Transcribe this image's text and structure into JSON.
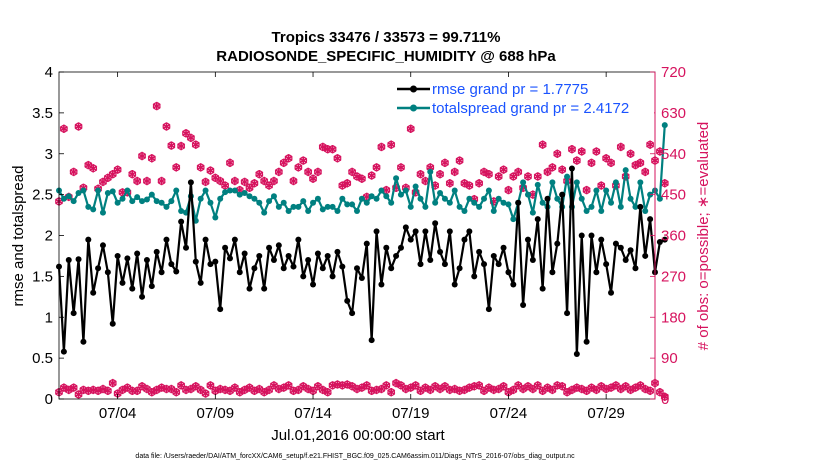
{
  "chart_data": {
    "type": "line",
    "title_line1": "Tropics 33476 / 33573 = 99.711%",
    "title_line2": "RADIOSONDE_SPECIFIC_HUMIDITY @ 688 hPa",
    "xlabel": "Jul.01,2016 00:00:00 start",
    "ylabel_left": "rmse and totalspread",
    "ylabel_right": "# of obs: o=possible; ∗=evaluated",
    "footnote": "data file: /Users/raeder/DAI/ATM_forcXX/CAM6_setup/f.e21.FHIST_BGC.f09_025.CAM6assim.011/Diags_NTrS_2016-07/obs_diag_output.nc",
    "x_range": [
      0.5,
      31.0
    ],
    "ylim_left": [
      0,
      4
    ],
    "ylim_right": [
      0,
      720
    ],
    "xticks": [
      {
        "value": 3.5,
        "label": "07/04"
      },
      {
        "value": 8.5,
        "label": "07/09"
      },
      {
        "value": 13.5,
        "label": "07/14"
      },
      {
        "value": 18.5,
        "label": "07/19"
      },
      {
        "value": 23.5,
        "label": "07/24"
      },
      {
        "value": 28.5,
        "label": "07/29"
      }
    ],
    "yticks_left": [
      "0",
      "0.5",
      "1",
      "1.5",
      "2",
      "2.5",
      "3",
      "3.5",
      "4"
    ],
    "yticks_right": [
      "0",
      "90",
      "180",
      "270",
      "360",
      "450",
      "540",
      "630",
      "720"
    ],
    "x_start": 0.5,
    "x_step": 0.25,
    "colors": {
      "rmse": "#000000",
      "spread": "#008080",
      "obs": "#d6135e",
      "legend_text": "#1a53ff",
      "axis": "#000000"
    },
    "legend": [
      {
        "name": "rmse grand pr = 1.7775",
        "series": "rmse"
      },
      {
        "name": "totalspread grand pr = 2.4172",
        "series": "spread"
      }
    ],
    "series": [
      {
        "name": "rmse",
        "values": [
          1.62,
          0.58,
          1.7,
          1.05,
          1.71,
          0.7,
          1.95,
          1.3,
          1.6,
          1.88,
          1.55,
          0.92,
          1.75,
          1.42,
          1.72,
          1.35,
          1.78,
          1.25,
          1.7,
          1.38,
          1.8,
          1.55,
          1.95,
          1.65,
          1.56,
          2.17,
          1.85,
          2.65,
          1.68,
          1.42,
          1.95,
          1.65,
          1.68,
          1.1,
          1.85,
          1.72,
          1.95,
          1.55,
          1.78,
          1.35,
          1.6,
          1.75,
          1.35,
          1.85,
          1.7,
          1.88,
          1.6,
          1.75,
          1.62,
          1.95,
          1.5,
          1.7,
          1.4,
          1.78,
          1.6,
          1.75,
          1.5,
          1.8,
          1.62,
          1.2,
          1.05,
          1.6,
          1.48,
          1.9,
          0.72,
          2.05,
          1.4,
          1.85,
          1.6,
          1.75,
          1.85,
          2.1,
          1.95,
          2.05,
          1.65,
          2.05,
          1.7,
          2.15,
          1.8,
          1.65,
          2.05,
          1.4,
          1.6,
          1.95,
          2.05,
          1.5,
          1.8,
          1.65,
          1.1,
          1.75,
          1.65,
          1.85,
          1.55,
          1.4,
          2.4,
          1.15,
          1.95,
          1.7,
          2.2,
          1.35,
          2.45,
          1.55,
          1.9,
          2.5,
          1.05,
          2.82,
          0.55,
          2.0,
          0.7,
          2.0,
          1.55,
          1.95,
          1.65,
          1.3,
          1.9,
          1.85,
          1.7,
          1.82,
          1.6,
          2.35,
          1.75,
          2.2,
          1.55,
          1.92,
          1.95
        ]
      },
      {
        "name": "totalspread",
        "values": [
          2.55,
          2.45,
          2.48,
          2.42,
          2.52,
          2.55,
          2.35,
          2.32,
          2.55,
          2.28,
          2.52,
          2.54,
          2.4,
          2.45,
          2.55,
          2.42,
          2.47,
          2.42,
          2.44,
          2.5,
          2.42,
          2.4,
          2.35,
          2.42,
          2.55,
          2.3,
          2.28,
          2.48,
          2.18,
          2.45,
          2.55,
          2.4,
          2.22,
          2.45,
          2.53,
          2.55,
          2.55,
          2.5,
          2.52,
          2.48,
          2.45,
          2.4,
          2.28,
          2.42,
          2.48,
          2.35,
          2.4,
          2.3,
          2.35,
          2.35,
          2.42,
          2.3,
          2.4,
          2.45,
          2.32,
          2.35,
          2.35,
          2.3,
          2.45,
          2.38,
          2.38,
          2.3,
          2.45,
          2.4,
          2.48,
          2.45,
          2.55,
          2.48,
          2.4,
          2.7,
          2.5,
          2.55,
          2.35,
          2.6,
          2.45,
          2.35,
          2.78,
          2.4,
          2.52,
          2.45,
          2.4,
          2.55,
          2.35,
          2.3,
          2.45,
          2.4,
          2.35,
          2.45,
          2.55,
          2.3,
          2.45,
          2.4,
          2.38,
          2.2,
          2.4,
          2.65,
          2.5,
          2.28,
          2.62,
          2.4,
          2.35,
          2.65,
          2.45,
          2.35,
          2.72,
          2.35,
          2.65,
          2.45,
          2.3,
          2.35,
          2.55,
          2.3,
          2.55,
          2.4,
          2.65,
          2.35,
          2.8,
          2.45,
          2.35,
          2.65,
          2.3,
          2.5,
          2.55,
          2.45,
          3.35
        ]
      },
      {
        "name": "obs_possible",
        "values": [
          435,
          595,
          445,
          500,
          600,
          465,
          515,
          508,
          463,
          478,
          487,
          495,
          505,
          455,
          455,
          495,
          480,
          535,
          480,
          530,
          645,
          480,
          600,
          558,
          510,
          557,
          585,
          575,
          560,
          510,
          478,
          503,
          487,
          480,
          470,
          520,
          480,
          460,
          478,
          465,
          475,
          495,
          480,
          470,
          480,
          500,
          520,
          530,
          480,
          510,
          525,
          500,
          485,
          500,
          555,
          550,
          550,
          530,
          470,
          475,
          500,
          490,
          485,
          445,
          492,
          510,
          555,
          460,
          560,
          465,
          510,
          465,
          595,
          455,
          495,
          480,
          510,
          470,
          495,
          520,
          475,
          500,
          525,
          475,
          470,
          440,
          475,
          500,
          495,
          435,
          490,
          505,
          460,
          490,
          500,
          465,
          490,
          450,
          490,
          560,
          500,
          510,
          540,
          505,
          480,
          550,
          525,
          545,
          460,
          520,
          545,
          470,
          530,
          520,
          470,
          555,
          490,
          540,
          515,
          520,
          500,
          560,
          525,
          545,
          475
        ]
      },
      {
        "name": "obs_evaluated",
        "values": [
          15,
          25,
          20,
          25,
          10,
          20,
          18,
          20,
          18,
          22,
          18,
          35,
          12,
          20,
          25,
          18,
          18,
          28,
          22,
          15,
          20,
          25,
          22,
          22,
          15,
          30,
          20,
          22,
          28,
          20,
          12,
          30,
          18,
          22,
          20,
          18,
          25,
          15,
          20,
          25,
          18,
          22,
          15,
          20,
          30,
          22,
          25,
          30,
          18,
          20,
          28,
          22,
          18,
          28,
          20,
          15,
          30,
          32,
          30,
          32,
          28,
          22,
          25,
          30,
          18,
          20,
          22,
          30,
          15,
          35,
          30,
          22,
          25,
          30,
          18,
          25,
          20,
          28,
          22,
          28,
          20,
          22,
          18,
          20,
          25,
          28,
          30,
          18,
          25,
          20,
          22,
          28,
          15,
          20,
          30,
          22,
          28,
          22,
          30,
          18,
          25,
          20,
          30,
          28,
          15,
          20,
          25,
          22,
          18,
          25,
          20,
          28,
          22,
          25,
          30,
          22,
          28,
          20,
          25,
          30,
          22,
          18,
          35,
          15,
          5
        ]
      }
    ]
  }
}
